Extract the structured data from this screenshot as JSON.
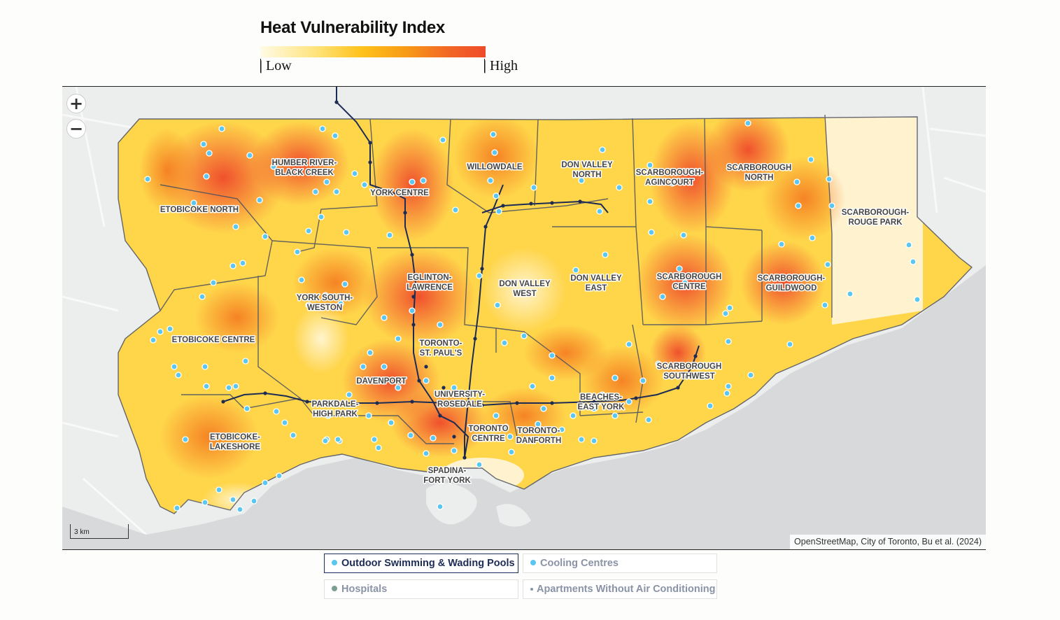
{
  "legend": {
    "title": "Heat Vulnerability Index",
    "low_label": "| Low",
    "high_label": "| High",
    "colors": [
      "#fffbe6",
      "#ffe37a",
      "#ffc21a",
      "#f79a16",
      "#f36a24",
      "#ef4a2b"
    ]
  },
  "map": {
    "zoom_in_label": "+",
    "zoom_out_label": "−",
    "scale_label": "3 km",
    "attribution": "OpenStreetMap, City of Toronto, Bu et al. (2024)",
    "water_color": "#d7d9da",
    "land_color": "#eceded",
    "boundary_color": "#4a5060",
    "transit_color": "#1d2c55",
    "point_color": "#5bc6ef",
    "neighbourhoods": [
      {
        "name_lines": [
          "HUMBER RIVER-",
          "BLACK CREEK"
        ]
      },
      {
        "name_lines": [
          "WILLOWDALE"
        ]
      },
      {
        "name_lines": [
          "DON VALLEY",
          "NORTH"
        ]
      },
      {
        "name_lines": [
          "SCARBOROUGH-",
          "AGINCOURT"
        ]
      },
      {
        "name_lines": [
          "SCARBOROUGH",
          "NORTH"
        ]
      },
      {
        "name_lines": [
          "YORK CENTRE"
        ]
      },
      {
        "name_lines": [
          "ETOBICOKE NORTH"
        ]
      },
      {
        "name_lines": [
          "SCARBOROUGH-",
          "ROUGE PARK"
        ]
      },
      {
        "name_lines": [
          "EGLINTON-",
          "LAWRENCE"
        ]
      },
      {
        "name_lines": [
          "DON VALLEY",
          "WEST"
        ]
      },
      {
        "name_lines": [
          "DON VALLEY",
          "EAST"
        ]
      },
      {
        "name_lines": [
          "SCARBOROUGH",
          "CENTRE"
        ]
      },
      {
        "name_lines": [
          "SCARBOROUGH-",
          "GUILDWOOD"
        ]
      },
      {
        "name_lines": [
          "YORK SOUTH-",
          "WESTON"
        ]
      },
      {
        "name_lines": [
          "ETOBICOKE CENTRE"
        ]
      },
      {
        "name_lines": [
          "TORONTO-",
          "ST. PAUL'S"
        ]
      },
      {
        "name_lines": [
          "SCARBOROUGH",
          "SOUTHWEST"
        ]
      },
      {
        "name_lines": [
          "DAVENPORT"
        ]
      },
      {
        "name_lines": [
          "UNIVERSITY-",
          "ROSEDALE"
        ]
      },
      {
        "name_lines": [
          "BEACHES-",
          "EAST YORK"
        ]
      },
      {
        "name_lines": [
          "PARKDALE-",
          "HIGH PARK"
        ]
      },
      {
        "name_lines": [
          "ETOBICOKE-",
          "LAKESHORE"
        ]
      },
      {
        "name_lines": [
          "TORONTO",
          "CENTRE"
        ]
      },
      {
        "name_lines": [
          "TORONTO-",
          "DANFORTH"
        ]
      },
      {
        "name_lines": [
          "SPADINA-",
          "FORT YORK"
        ]
      }
    ]
  },
  "filters": [
    {
      "label": "Outdoor Swimming & Wading Pools",
      "active": true,
      "dot_color": "#5bc6ef",
      "dot_size": "normal"
    },
    {
      "label": "Cooling Centres",
      "active": false,
      "dot_color": "#5bc6ef",
      "dot_size": "normal"
    },
    {
      "label": "Hospitals",
      "active": false,
      "dot_color": "#7b9e96",
      "dot_size": "normal"
    },
    {
      "label": "Apartments Without Air Conditioning",
      "active": false,
      "dot_color": "#8a93a6",
      "dot_size": "small"
    }
  ]
}
